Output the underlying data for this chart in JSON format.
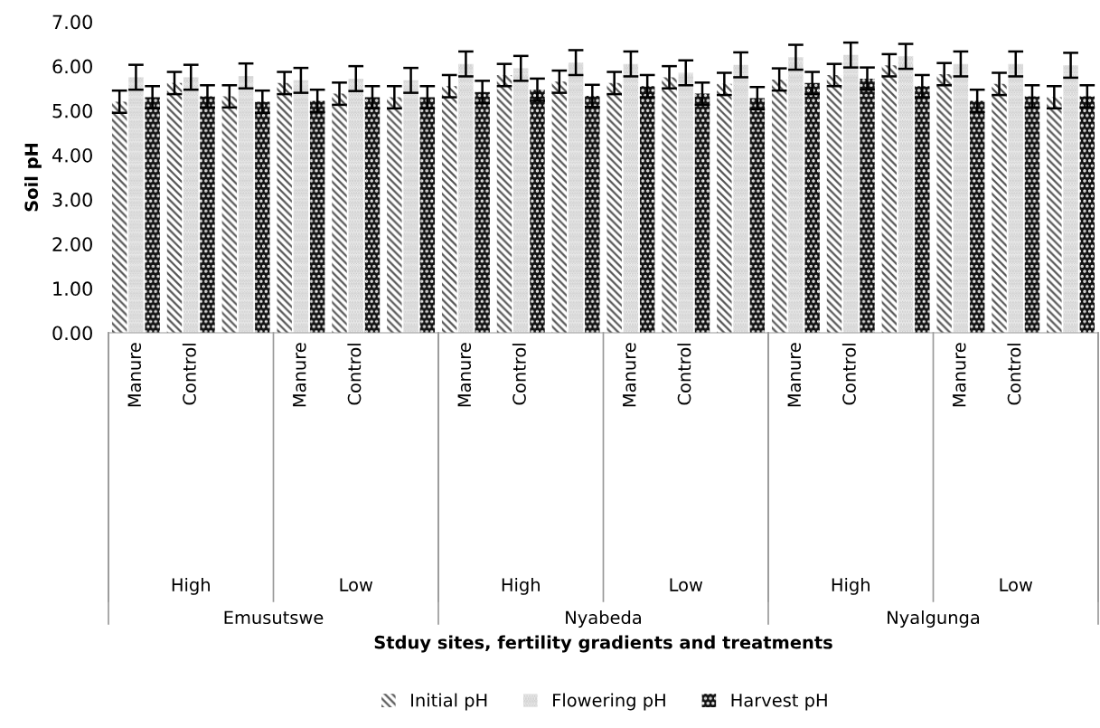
{
  "chart_data": {
    "type": "bar",
    "ylabel": "Soil pH",
    "categories": [
      "Manure",
      "Control",
      null,
      "Manure",
      "Control",
      null,
      "Manure",
      "Control",
      null,
      "Manure",
      "Control",
      null,
      "Manure",
      "Control",
      null,
      "Manure",
      "Control",
      null
    ],
    "series": [
      {
        "name": "Initial pH",
        "color": "#555555",
        "values": [
          5.2,
          5.62,
          5.32,
          5.62,
          5.38,
          5.3,
          5.55,
          5.8,
          5.65,
          5.62,
          5.75,
          5.6,
          5.7,
          5.8,
          6.02,
          5.82,
          5.6,
          5.3
        ],
        "errors": [
          0.25,
          0.25,
          0.25,
          0.25,
          0.25,
          0.25,
          0.25,
          0.25,
          0.25,
          0.25,
          0.25,
          0.25,
          0.25,
          0.25,
          0.25,
          0.25,
          0.25,
          0.25
        ]
      },
      {
        "name": "Flowering pH",
        "color": "#bbbbbb",
        "values": [
          5.75,
          5.75,
          5.78,
          5.68,
          5.72,
          5.68,
          6.05,
          5.95,
          6.08,
          6.05,
          5.85,
          6.03,
          6.2,
          6.25,
          6.22,
          6.05,
          6.05,
          6.02
        ],
        "errors": [
          0.28,
          0.28,
          0.28,
          0.28,
          0.28,
          0.28,
          0.28,
          0.28,
          0.28,
          0.28,
          0.28,
          0.28,
          0.28,
          0.28,
          0.28,
          0.28,
          0.28,
          0.28
        ]
      },
      {
        "name": "Harvest pH",
        "color": "#111111",
        "values": [
          5.3,
          5.32,
          5.2,
          5.22,
          5.3,
          5.3,
          5.42,
          5.47,
          5.33,
          5.55,
          5.38,
          5.28,
          5.62,
          5.72,
          5.55,
          5.22,
          5.32,
          5.32
        ],
        "errors": [
          0.25,
          0.25,
          0.25,
          0.25,
          0.25,
          0.25,
          0.25,
          0.25,
          0.25,
          0.25,
          0.25,
          0.25,
          0.25,
          0.25,
          0.25,
          0.25,
          0.25,
          0.25
        ]
      }
    ],
    "ylim": [
      0,
      7
    ],
    "yticks": [
      {
        "value": 0,
        "label": "0.00"
      },
      {
        "value": 1,
        "label": "1.00"
      },
      {
        "value": 2,
        "label": "2.00"
      },
      {
        "value": 3,
        "label": "3.00"
      },
      {
        "value": 4,
        "label": "4.00"
      },
      {
        "value": 5,
        "label": "5.00"
      },
      {
        "value": 6,
        "label": "6.00"
      },
      {
        "value": 7,
        "label": "7.00"
      }
    ],
    "grid": false,
    "legend": "bottom",
    "annotations": [
      "High",
      "Low",
      "High",
      "Low",
      "High",
      "Low",
      "Emusutswe",
      "Nyabeda",
      "Nyalgunga",
      "Stduy sites, fertility gradients and treatments"
    ]
  }
}
